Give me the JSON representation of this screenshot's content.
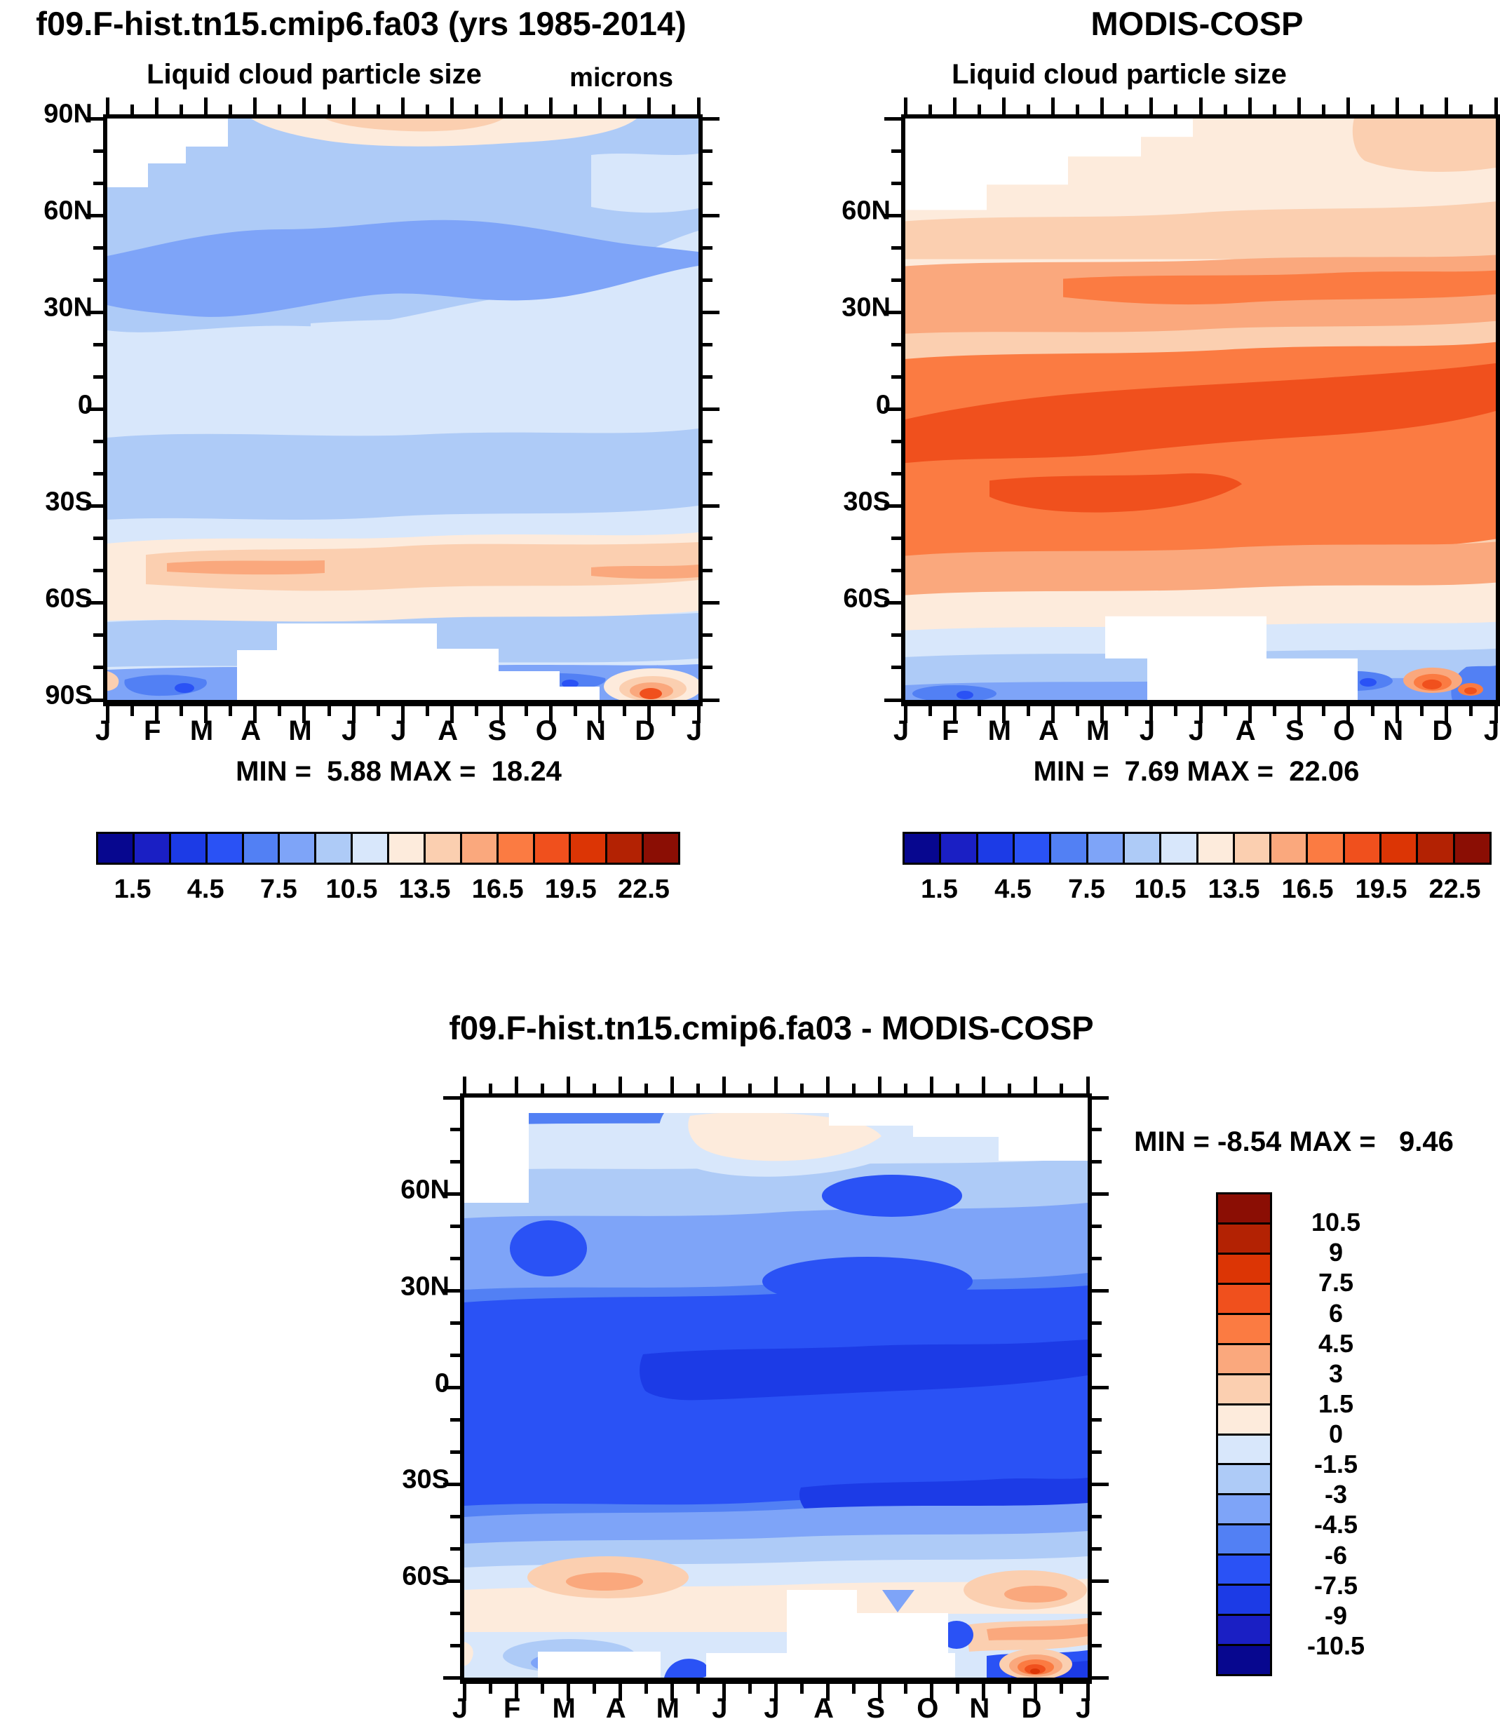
{
  "palette": [
    "#07078F",
    "#1A1FC4",
    "#1C3BE6",
    "#2A52F5",
    "#5280F4",
    "#7EA4F8",
    "#AECBF7",
    "#D8E7FB",
    "#FDEBDC",
    "#FBCFB0",
    "#FAA87D",
    "#FB7B42",
    "#F0501D",
    "#DC3505",
    "#B32203",
    "#8B0E04"
  ],
  "months": [
    "J",
    "F",
    "M",
    "A",
    "M",
    "J",
    "J",
    "A",
    "S",
    "O",
    "N",
    "D",
    "J"
  ],
  "header": {
    "title_left": "f09.F-hist.tn15.cmip6.fa03 (yrs 1985-2014)",
    "title_right": "MODIS-COSP",
    "title_bottom": "f09.F-hist.tn15.cmip6.fa03 - MODIS-COSP"
  },
  "panels": {
    "model": {
      "subtitle": "Liquid cloud particle size",
      "units": "microns",
      "minmax": "MIN =  5.88 MAX =  18.24",
      "yticks": [
        {
          "t": "90N",
          "f": 0
        },
        {
          "t": "60N",
          "f": 0.1667
        },
        {
          "t": "30N",
          "f": 0.3333
        },
        {
          "t": "0",
          "f": 0.5
        },
        {
          "t": "30S",
          "f": 0.6667
        },
        {
          "t": "60S",
          "f": 0.8333
        },
        {
          "t": "90S",
          "f": 1
        }
      ]
    },
    "obs": {
      "subtitle": "Liquid cloud particle size",
      "minmax": "MIN =  7.69 MAX =  22.06",
      "yticks": [
        {
          "t": "60N",
          "f": 0.1667
        },
        {
          "t": "30N",
          "f": 0.3333
        },
        {
          "t": "0",
          "f": 0.5
        },
        {
          "t": "30S",
          "f": 0.6667
        },
        {
          "t": "60S",
          "f": 0.8333
        }
      ]
    },
    "diff": {
      "minmax": "MIN = -8.54 MAX =   9.46",
      "yticks": [
        {
          "t": "60N",
          "f": 0.1667
        },
        {
          "t": "30N",
          "f": 0.3333
        },
        {
          "t": "0",
          "f": 0.5
        },
        {
          "t": "30S",
          "f": 0.6667
        },
        {
          "t": "60S",
          "f": 0.8333
        }
      ]
    }
  },
  "colorbars": {
    "reff": {
      "vertical": false,
      "reverse": false,
      "labels": [
        {
          "t": "1.5",
          "f": 0.0625
        },
        {
          "t": "4.5",
          "f": 0.1875
        },
        {
          "t": "7.5",
          "f": 0.3125
        },
        {
          "t": "10.5",
          "f": 0.4375
        },
        {
          "t": "13.5",
          "f": 0.5625
        },
        {
          "t": "16.5",
          "f": 0.6875
        },
        {
          "t": "19.5",
          "f": 0.8125
        },
        {
          "t": "22.5",
          "f": 0.9375
        }
      ]
    },
    "diff": {
      "vertical": true,
      "reverse": true,
      "labels": [
        {
          "t": "10.5",
          "f": 0.0625
        },
        {
          "t": "9",
          "f": 0.125
        },
        {
          "t": "7.5",
          "f": 0.1875
        },
        {
          "t": "6",
          "f": 0.25
        },
        {
          "t": "4.5",
          "f": 0.3125
        },
        {
          "t": "3",
          "f": 0.375
        },
        {
          "t": "1.5",
          "f": 0.4375
        },
        {
          "t": "0",
          "f": 0.5
        },
        {
          "t": "-1.5",
          "f": 0.5625
        },
        {
          "t": "-3",
          "f": 0.625
        },
        {
          "t": "-4.5",
          "f": 0.6875
        },
        {
          "t": "-6",
          "f": 0.75
        },
        {
          "t": "-7.5",
          "f": 0.8125
        },
        {
          "t": "-9",
          "f": 0.875
        },
        {
          "t": "-10.5",
          "f": 0.9375
        }
      ]
    }
  },
  "chart_data": [
    {
      "type": "filled-contour",
      "panel": "top-left",
      "title": "f09.F-hist.tn15.cmip6.fa03 (yrs 1985-2014)",
      "variable": "Liquid cloud particle size",
      "units": "microns",
      "x": "month (J,F,M,A,M,J,J,A,S,O,N,D,J)",
      "y": "latitude (90N to 90S)",
      "min": 5.88,
      "max": 18.24,
      "contour_interval": 1.5,
      "levels": [
        0,
        1.5,
        3,
        4.5,
        6,
        7.5,
        9,
        10.5,
        12,
        13.5,
        15,
        16.5,
        18,
        19.5,
        21,
        22.5,
        24
      ],
      "summary": "Mostly 9-12 microns; darker 7.5-9 micron band 30N-65N all year; 12-15 micron maximum band near 45S-65S; blue band with small spots near 85S-90S; white (missing) data over Antarctica ~70S-85S Apr-Sep and high Arctic Jan-Mar; small 16.5-18 micron spot near 88S in December."
    },
    {
      "type": "filled-contour",
      "panel": "top-right",
      "title": "MODIS-COSP",
      "variable": "Liquid cloud particle size",
      "units": "microns",
      "x": "month (J,F,M,A,M,J,J,A,S,O,N,D,J)",
      "y": "latitude (90N to 90S)",
      "min": 7.69,
      "max": 22.06,
      "contour_interval": 1.5,
      "levels": [
        0,
        1.5,
        3,
        4.5,
        6,
        7.5,
        9,
        10.5,
        12,
        13.5,
        15,
        16.5,
        18,
        19.5,
        21,
        22.5,
        24
      ],
      "summary": "Mostly 13.5-18 microns; broad 16.5-19.5 micron maximum from ~10N to 45S with darkest core near the equator to 20S; 12-15 microns 30N-60N; cream 12-13.5 near 60-80N; blues (7.5-12) south of 62S; missing data (white) in polar regions; small red spots near 85S Nov-Dec."
    },
    {
      "type": "filled-contour",
      "panel": "bottom-center",
      "title": "f09.F-hist.tn15.cmip6.fa03 - MODIS-COSP",
      "variable": "Liquid cloud particle size difference",
      "units": "microns",
      "x": "month (J,F,M,A,M,J,J,A,S,O,N,D,J)",
      "y": "latitude (90N to 90S)",
      "min": -8.54,
      "max": 9.46,
      "contour_interval": 1.5,
      "levels": [
        -12,
        -10.5,
        -9,
        -7.5,
        -6,
        -4.5,
        -3,
        -1.5,
        0,
        1.5,
        3,
        4.5,
        6,
        7.5,
        9,
        10.5,
        12
      ],
      "summary": "Model minus MODIS is negative nearly everywhere: -4.5 to -6 in mid-latitudes, strongest -6 to -9 from 25N to 30S with darkest core near 0-10N May-Nov; weaker (-1.5 to -3) near 75-85N with a small positive (0-1.5) patch at top center; positive patches (+1.5 to +3) near 60-70S Feb-Apr and Oct-Dec; white missing data over Antarctica and high Arctic; warm spot (+4.5 to +9) near 87S in December."
    }
  ]
}
